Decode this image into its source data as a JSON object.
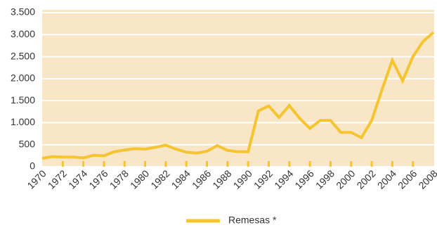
{
  "chart_data": {
    "type": "line",
    "categories": [
      "1970",
      null,
      "1972",
      null,
      "1974",
      null,
      "1976",
      null,
      "1978",
      null,
      "1980",
      null,
      "1982",
      null,
      "1984",
      null,
      "1986",
      null,
      "1988",
      null,
      "1990",
      null,
      "1992",
      null,
      "1994",
      null,
      "1996",
      null,
      "1998",
      null,
      "2000",
      null,
      "2002",
      null,
      "2004",
      null,
      "2006",
      null,
      "2008"
    ],
    "series": [
      {
        "name": "Remesas *",
        "color": "#f5c431",
        "values": [
          190,
          230,
          220,
          220,
          200,
          260,
          250,
          340,
          380,
          410,
          400,
          440,
          490,
          400,
          330,
          310,
          350,
          480,
          370,
          340,
          340,
          1270,
          1380,
          1120,
          1390,
          1100,
          870,
          1050,
          1050,
          780,
          780,
          660,
          1050,
          1750,
          2420,
          1950,
          2500,
          2850,
          3050
        ]
      }
    ],
    "ylim": [
      0,
      3500
    ],
    "yticks": [
      0,
      500,
      {
        "value": 1000,
        "label": "1.000"
      },
      {
        "value": 1500,
        "label": "1.500"
      },
      {
        "value": 2000,
        "label": "2.000"
      },
      {
        "value": 2500,
        "label": "2.500"
      },
      {
        "value": 3000,
        "label": "3.000"
      },
      {
        "value": 3500,
        "label": "3.500"
      }
    ],
    "grid": true,
    "legend": "bottom"
  }
}
